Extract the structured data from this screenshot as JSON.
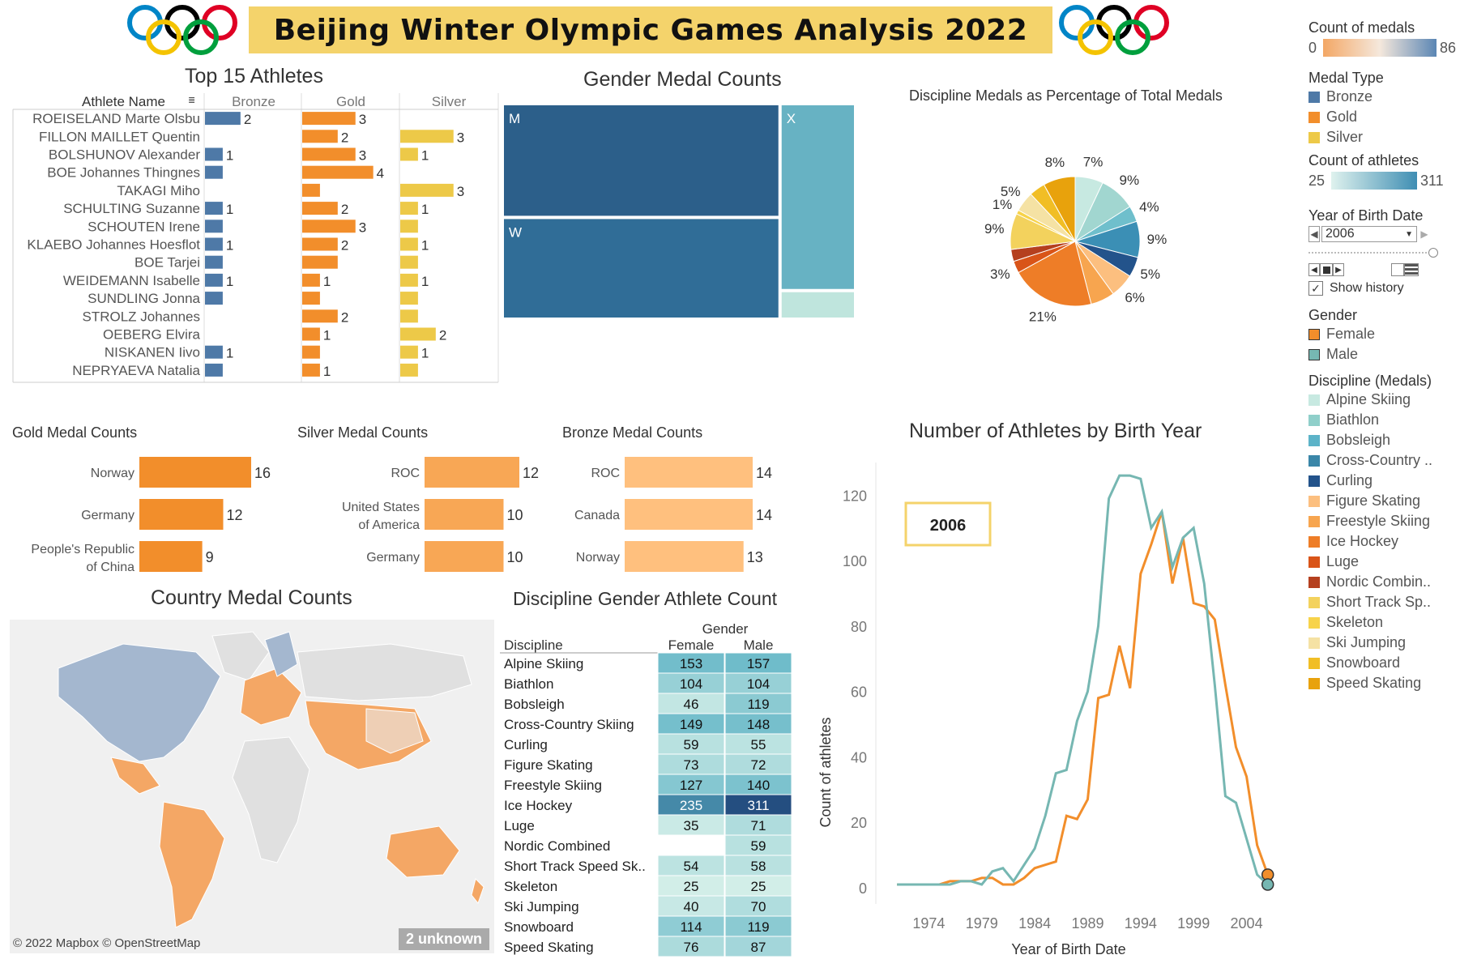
{
  "header": {
    "title": "Beijing Winter Olympic Games Analysis 2022",
    "olympic_ring_colors": [
      "#0085c7",
      "#f4c300",
      "#000000",
      "#009f3d",
      "#df0024"
    ]
  },
  "colors": {
    "bronze": "#4e79a7",
    "gold": "#f28e2b",
    "silver": "#edc948",
    "female": "#f28e2b",
    "male": "#76b7b2"
  },
  "top_athletes": {
    "title": "Top 15 Athletes",
    "header_label": "Athlete Name",
    "columns": [
      "Bronze",
      "Gold",
      "Silver"
    ],
    "chart_data": {
      "type": "bar",
      "categories": [
        "ROEISELAND Marte Olsbu",
        "FILLON MAILLET Quentin",
        "BOLSHUNOV Alexander",
        "BOE Johannes Thingnes",
        "TAKAGI Miho",
        "SCHULTING Suzanne",
        "SCHOUTEN Irene",
        "KLAEBO Johannes Hoesflot",
        "BOE Tarjei",
        "WEIDEMANN Isabelle",
        "SUNDLING Jonna",
        "STROLZ Johannes",
        "OEBERG Elvira",
        "NISKANEN Iivo",
        "NEPRYAEVA Natalia"
      ],
      "series": [
        {
          "name": "Bronze",
          "values": [
            2,
            0,
            1,
            1,
            0,
            1,
            1,
            1,
            1,
            1,
            1,
            0,
            0,
            1,
            1
          ]
        },
        {
          "name": "Gold",
          "values": [
            3,
            2,
            3,
            4,
            1,
            2,
            3,
            2,
            2,
            1,
            1,
            2,
            1,
            1,
            1
          ]
        },
        {
          "name": "Silver",
          "values": [
            0,
            3,
            1,
            0,
            3,
            1,
            1,
            1,
            1,
            1,
            1,
            1,
            2,
            1,
            1
          ]
        }
      ],
      "labels": {
        "Bronze": [
          "2",
          "",
          "1",
          "",
          "",
          "1",
          "",
          "1",
          "",
          "1",
          "",
          "",
          "",
          "1",
          ""
        ],
        "Gold": [
          "3",
          "2",
          "3",
          "4",
          "",
          "2",
          "3",
          "2",
          "",
          "1",
          "",
          "2",
          "1",
          "",
          "1"
        ],
        "Silver": [
          "",
          "3",
          "1",
          "",
          "3",
          "1",
          "",
          "1",
          "",
          "1",
          "",
          "",
          "2",
          "1",
          ""
        ]
      },
      "xlim": [
        0,
        4.6
      ]
    }
  },
  "gender_treemap": {
    "title": "Gender Medal Counts",
    "chart_data": {
      "type": "treemap",
      "items": [
        {
          "label": "M",
          "value": 161,
          "color": "#2c5f8a"
        },
        {
          "label": "W",
          "value": 144,
          "color": "#306d97"
        },
        {
          "label": "X",
          "value": 72,
          "color": "#67b2c3"
        },
        {
          "label": "",
          "value": 11,
          "color": "#bfe5dd"
        }
      ]
    }
  },
  "discipline_pie": {
    "title": "Discipline Medals as Percentage of Total Medals",
    "chart_data": {
      "type": "pie",
      "slices": [
        {
          "name": "Alpine Skiing",
          "value": 7,
          "label": "7%",
          "color": "#c7e9e1"
        },
        {
          "name": "Biathlon",
          "value": 9,
          "label": "9%",
          "color": "#a1d6d0"
        },
        {
          "name": "Bobsleigh",
          "value": 4,
          "label": "4%",
          "color": "#6fbfcc"
        },
        {
          "name": "Cross-Country Skiing",
          "value": 9,
          "label": "9%",
          "color": "#3b8fb5"
        },
        {
          "name": "Curling",
          "value": 5,
          "label": "5%",
          "color": "#23538b"
        },
        {
          "name": "Figure Skating",
          "value": 6,
          "label": "6%",
          "color": "#fcbf7f"
        },
        {
          "name": "Freestyle Skiing",
          "value": 6,
          "label": "",
          "color": "#f7a54f"
        },
        {
          "name": "Ice Hockey",
          "value": 21,
          "label": "21%",
          "color": "#ee7d27"
        },
        {
          "name": "Luge",
          "value": 3,
          "label": "3%",
          "color": "#d95418"
        },
        {
          "name": "Nordic Combined",
          "value": 3,
          "label": "",
          "color": "#b5401f"
        },
        {
          "name": "Short Track Speed Skating",
          "value": 9,
          "label": "9%",
          "color": "#f3d25d"
        },
        {
          "name": "Skeleton",
          "value": 1,
          "label": "1%",
          "color": "#f7d34a"
        },
        {
          "name": "Ski Jumping",
          "value": 5,
          "label": "5%",
          "color": "#f5e2a4"
        },
        {
          "name": "Snowboard",
          "value": 4,
          "label": "",
          "color": "#f1be25"
        },
        {
          "name": "Speed Skating",
          "value": 8,
          "label": "8%",
          "color": "#e8a20c"
        }
      ]
    }
  },
  "gold_counts": {
    "title": "Gold Medal Counts",
    "chart_data": {
      "type": "bar",
      "categories": [
        "Norway",
        "Germany",
        "People's Republic of China"
      ],
      "values": [
        16,
        12,
        9
      ],
      "xlim": [
        0,
        17
      ],
      "color": "#f28e2b"
    }
  },
  "silver_counts": {
    "title": "Silver Medal Counts",
    "chart_data": {
      "type": "bar",
      "categories": [
        "ROC",
        "United States of America",
        "Germany"
      ],
      "values": [
        12,
        10,
        10
      ],
      "xlim": [
        0,
        13.2
      ],
      "color": "#f8a755"
    }
  },
  "bronze_counts": {
    "title": "Bronze Medal Counts",
    "chart_data": {
      "type": "bar",
      "categories": [
        "ROC",
        "Canada",
        "Norway"
      ],
      "values": [
        14,
        14,
        13
      ],
      "xlim": [
        0,
        15.3
      ],
      "color": "#ffc07e"
    }
  },
  "country_map": {
    "title": "Country Medal Counts",
    "attribution": "© 2022 Mapbox © OpenStreetMap",
    "unknown_badge": "2 unknown"
  },
  "discipline_table": {
    "title": "Discipline Gender Athlete Count",
    "group_header": "Gender",
    "row_header": "Discipline",
    "columns": [
      "Female",
      "Male"
    ],
    "chart_data": {
      "type": "heatmap",
      "rows": [
        "Alpine Skiing",
        "Biathlon",
        "Bobsleigh",
        "Cross-Country Skiing",
        "Curling",
        "Figure Skating",
        "Freestyle Skiing",
        "Ice Hockey",
        "Luge",
        "Nordic Combined",
        "Short Track Speed Sk..",
        "Skeleton",
        "Ski Jumping",
        "Snowboard",
        "Speed Skating"
      ],
      "female": [
        153,
        104,
        46,
        149,
        59,
        73,
        127,
        235,
        35,
        null,
        54,
        25,
        40,
        114,
        76
      ],
      "male": [
        157,
        104,
        119,
        148,
        55,
        72,
        140,
        311,
        71,
        59,
        58,
        25,
        70,
        119,
        87
      ],
      "color_range": [
        25,
        311
      ]
    }
  },
  "birth_year_line": {
    "title": "Number of Athletes by Birth Year",
    "highlight_label": "2006",
    "chart_data": {
      "type": "line",
      "xlabel": "Year of Birth Date",
      "ylabel": "Count of athletes",
      "xlim": [
        1969,
        2010
      ],
      "ylim": [
        0,
        130
      ],
      "xticks": [
        1974,
        1979,
        1984,
        1989,
        1994,
        1999,
        2004
      ],
      "yticks": [
        0,
        20,
        40,
        60,
        80,
        100,
        120
      ],
      "series": [
        {
          "name": "Female",
          "color": "#f28e2b",
          "x": [
            1971,
            1972,
            1973,
            1974,
            1975,
            1976,
            1977,
            1978,
            1979,
            1980,
            1981,
            1982,
            1983,
            1984,
            1985,
            1986,
            1987,
            1988,
            1989,
            1990,
            1991,
            1992,
            1993,
            1994,
            1995,
            1996,
            1997,
            1998,
            1999,
            2000,
            2001,
            2002,
            2003,
            2004,
            2005,
            2006
          ],
          "y": [
            1,
            1,
            1,
            1,
            1,
            2,
            2,
            2,
            3,
            3,
            1,
            1,
            3,
            6,
            7,
            8,
            22,
            21,
            27,
            58,
            59,
            74,
            61,
            96,
            105,
            115,
            93,
            107,
            87,
            86,
            82,
            62,
            43,
            34,
            13,
            4
          ]
        },
        {
          "name": "Male",
          "color": "#76b7b2",
          "x": [
            1971,
            1972,
            1973,
            1974,
            1975,
            1976,
            1977,
            1978,
            1979,
            1980,
            1981,
            1982,
            1983,
            1984,
            1985,
            1986,
            1987,
            1988,
            1989,
            1990,
            1991,
            1992,
            1993,
            1994,
            1995,
            1996,
            1997,
            1998,
            1999,
            2000,
            2001,
            2002,
            2003,
            2004,
            2005,
            2006
          ],
          "y": [
            1,
            1,
            1,
            1,
            1,
            1,
            2,
            2,
            1,
            5,
            6,
            2,
            7,
            12,
            22,
            35,
            36,
            51,
            60,
            80,
            119,
            126,
            126,
            125,
            110,
            115,
            98,
            107,
            110,
            93,
            62,
            28,
            26,
            15,
            4,
            1
          ]
        }
      ]
    }
  },
  "legends": {
    "count_medals": {
      "title": "Count of medals",
      "min": "0",
      "max": "86"
    },
    "medal_type": {
      "title": "Medal Type",
      "items": [
        {
          "label": "Bronze",
          "color": "#4e79a7"
        },
        {
          "label": "Gold",
          "color": "#f28e2b"
        },
        {
          "label": "Silver",
          "color": "#edc948"
        }
      ]
    },
    "count_athletes": {
      "title": "Count of athletes",
      "min": "25",
      "max": "311"
    },
    "year_filter": {
      "title": "Year of Birth Date",
      "value": "2006",
      "show_history": "Show history"
    },
    "gender": {
      "title": "Gender",
      "items": [
        {
          "label": "Female",
          "color": "#f28e2b"
        },
        {
          "label": "Male",
          "color": "#76b7b2"
        }
      ]
    },
    "discipline": {
      "title": "Discipline (Medals)",
      "items": [
        {
          "label": "Alpine Skiing",
          "color": "#c7e9e1"
        },
        {
          "label": "Biathlon",
          "color": "#8fcfca"
        },
        {
          "label": "Bobsleigh",
          "color": "#5cb3c8"
        },
        {
          "label": "Cross-Country ..",
          "color": "#3a86a8"
        },
        {
          "label": "Curling",
          "color": "#23538b"
        },
        {
          "label": "Figure Skating",
          "color": "#fcbf7f"
        },
        {
          "label": "Freestyle Skiing",
          "color": "#f7a54f"
        },
        {
          "label": "Ice Hockey",
          "color": "#ee7d27"
        },
        {
          "label": "Luge",
          "color": "#d95418"
        },
        {
          "label": "Nordic Combin..",
          "color": "#b5401f"
        },
        {
          "label": "Short Track Sp..",
          "color": "#f3d25d"
        },
        {
          "label": "Skeleton",
          "color": "#f7d34a"
        },
        {
          "label": "Ski Jumping",
          "color": "#f5e2a4"
        },
        {
          "label": "Snowboard",
          "color": "#f1be25"
        },
        {
          "label": "Speed Skating",
          "color": "#e8a20c"
        }
      ]
    }
  }
}
